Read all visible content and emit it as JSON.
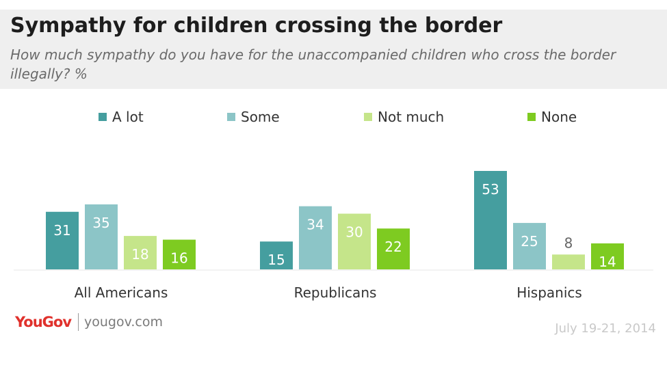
{
  "title": "Sympathy for children crossing the border",
  "subtitle": "How much sympathy do you have for the unaccompanied children who cross the border illegally? %",
  "footer": {
    "brand": "YouGov",
    "url": "yougov.com",
    "date": "July 19-21, 2014"
  },
  "colors": {
    "a_lot": "#459e9f",
    "some": "#8cc5c7",
    "not_much": "#c5e58a",
    "none": "#7ecb21",
    "header_bg": "#efefef",
    "brand": "#e0312c"
  },
  "legend": [
    {
      "label": "A lot",
      "color": "#459e9f"
    },
    {
      "label": "Some",
      "color": "#8cc5c7"
    },
    {
      "label": "Not much",
      "color": "#c5e58a"
    },
    {
      "label": "None",
      "color": "#7ecb21"
    }
  ],
  "chart_data": {
    "type": "bar",
    "title": "Sympathy for children crossing the border",
    "subtitle": "How much sympathy do you have for the unaccompanied children who cross the border illegally? %",
    "categories": [
      "All Americans",
      "Republicans",
      "Hispanics"
    ],
    "series": [
      {
        "name": "A lot",
        "color": "#459e9f",
        "values": [
          31,
          15,
          53
        ]
      },
      {
        "name": "Some",
        "color": "#8cc5c7",
        "values": [
          35,
          34,
          25
        ]
      },
      {
        "name": "Not much",
        "color": "#c5e58a",
        "values": [
          18,
          30,
          8
        ]
      },
      {
        "name": "None",
        "color": "#7ecb21",
        "values": [
          16,
          22,
          14
        ]
      }
    ],
    "ylim": [
      0,
      53
    ],
    "grid": false,
    "legend_position": "top",
    "data_labels": true
  }
}
